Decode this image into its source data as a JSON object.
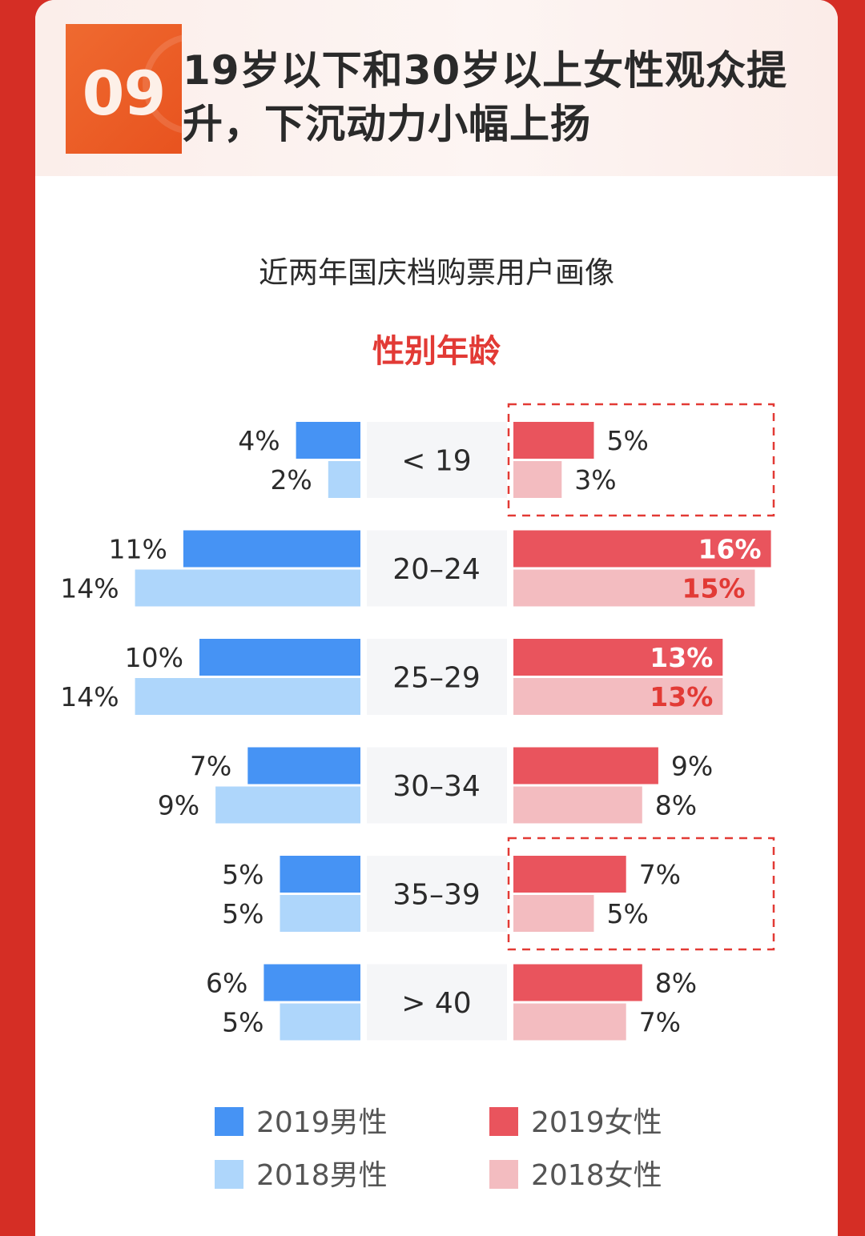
{
  "badge": {
    "number": "09"
  },
  "title_lines": [
    "19岁以下和30岁以上女性观众提",
    "升，下沉动力小幅上扬"
  ],
  "colors": {
    "male_2019": "#4693f4",
    "male_2018": "#aed6fb",
    "female_2019": "#e9545d",
    "female_2018": "#f3bcc0",
    "highlight": "#e23a35",
    "page_border": "#d52e25",
    "badge": "#e8531f"
  },
  "chart_data": {
    "type": "bar",
    "title": "近两年国庆档购票用户画像",
    "subtitle": "性别年龄",
    "categories": [
      "< 19",
      "20–24",
      "25–29",
      "30–34",
      "35–39",
      "> 40"
    ],
    "series": [
      {
        "name": "2019男性",
        "side": "left",
        "values": [
          4,
          11,
          10,
          7,
          5,
          6
        ]
      },
      {
        "name": "2018男性",
        "side": "left",
        "values": [
          2,
          14,
          14,
          9,
          5,
          5
        ]
      },
      {
        "name": "2019女性",
        "side": "right",
        "values": [
          5,
          16,
          13,
          9,
          7,
          8
        ]
      },
      {
        "name": "2018女性",
        "side": "right",
        "values": [
          3,
          15,
          13,
          8,
          5,
          7
        ]
      }
    ],
    "value_unit": "%",
    "highlighted_categories": [
      "< 19",
      "35–39"
    ],
    "highlighted_side": "right",
    "legend_position": "bottom"
  }
}
